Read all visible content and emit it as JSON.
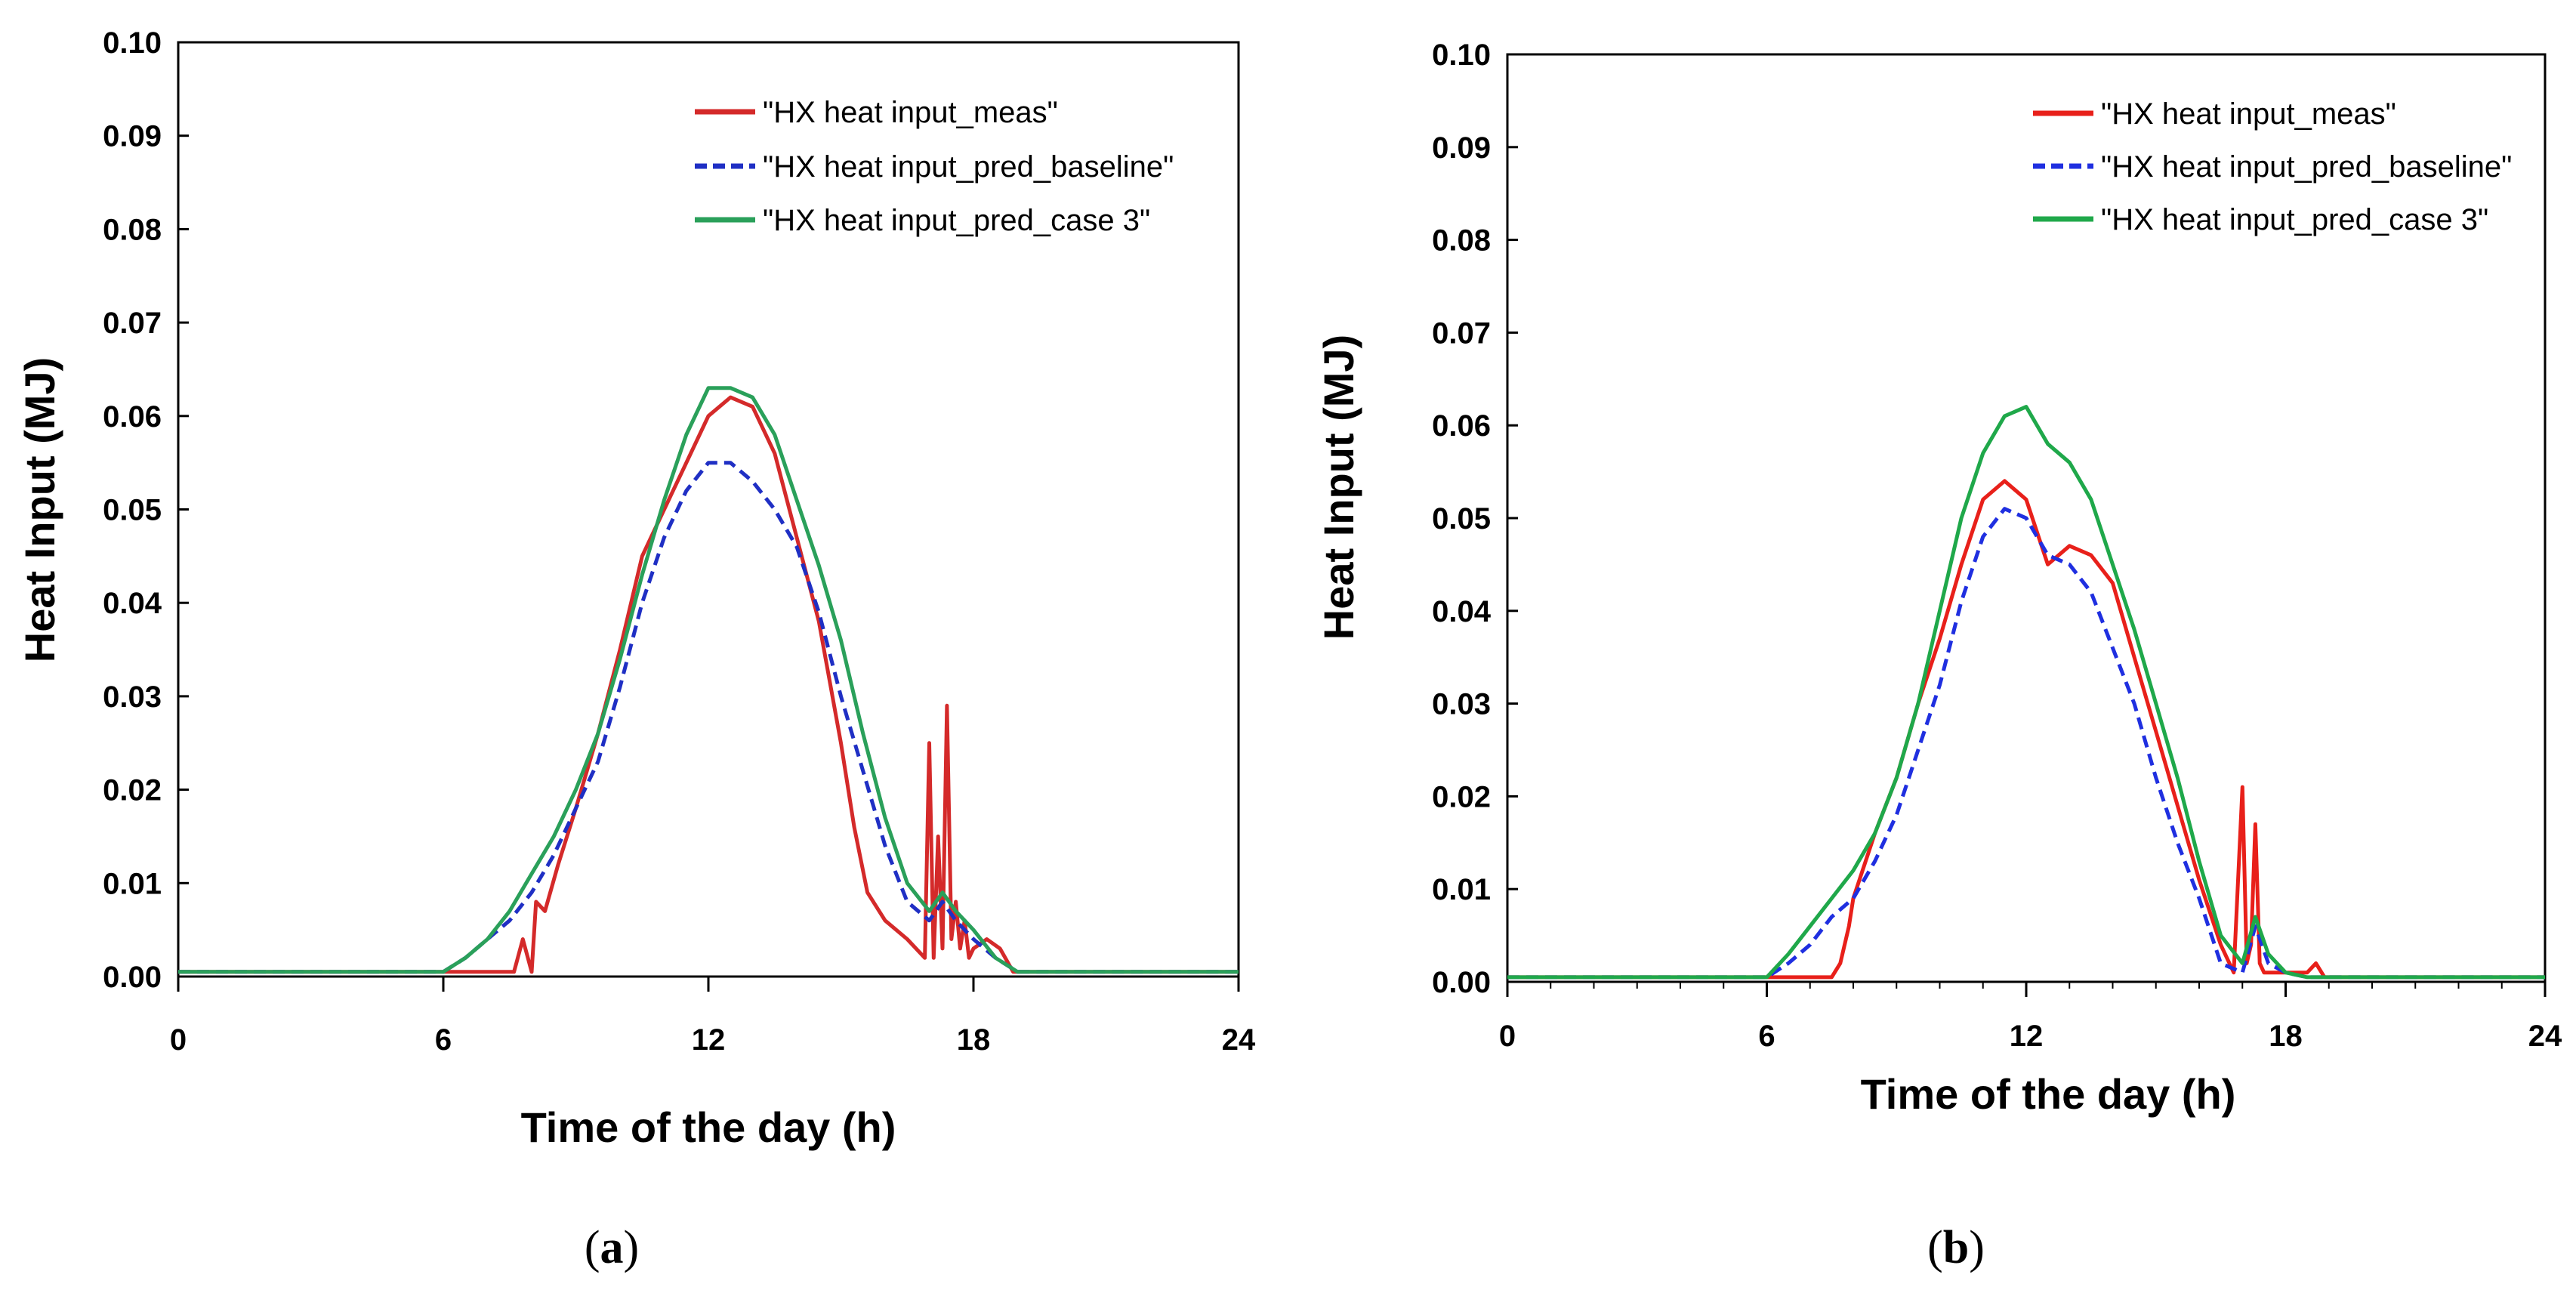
{
  "chart_data": [
    {
      "type": "line",
      "panel_label": "a",
      "title": "",
      "xlabel": "Time of the day (h)",
      "ylabel": "Heat Input (MJ)",
      "xlim": [
        0,
        24
      ],
      "ylim": [
        0,
        0.1
      ],
      "x_ticks": [
        0,
        6,
        12,
        18,
        24
      ],
      "x_tick_labels": [
        "0",
        "6",
        "12",
        "18",
        "24"
      ],
      "y_ticks": [
        0,
        0.01,
        0.02,
        0.03,
        0.04,
        0.05,
        0.06,
        0.07,
        0.08,
        0.09,
        0.1
      ],
      "y_tick_labels": [
        "0.00",
        "0.01",
        "0.02",
        "0.03",
        "0.04",
        "0.05",
        "0.06",
        "0.07",
        "0.08",
        "0.09",
        "0.10"
      ],
      "legend_position": "top-right",
      "grid": false,
      "series": [
        {
          "name": "\"HX heat input_meas\"",
          "color": "#d42a2a",
          "dash": "solid",
          "x": [
            0,
            7.6,
            7.8,
            8,
            8.1,
            8.3,
            8.6,
            9,
            9.5,
            10,
            10.5,
            11,
            11.5,
            12,
            12.5,
            13,
            13.5,
            14,
            14.5,
            15,
            15.3,
            15.6,
            16,
            16.5,
            16.9,
            17,
            17.1,
            17.2,
            17.3,
            17.4,
            17.5,
            17.6,
            17.7,
            17.8,
            17.9,
            18,
            18.3,
            18.6,
            18.9,
            19.2,
            24
          ],
          "y": [
            0.0005,
            0.0005,
            0.004,
            0.0005,
            0.008,
            0.007,
            0.012,
            0.018,
            0.026,
            0.035,
            0.045,
            0.05,
            0.055,
            0.06,
            0.062,
            0.061,
            0.056,
            0.047,
            0.038,
            0.025,
            0.016,
            0.009,
            0.006,
            0.004,
            0.002,
            0.025,
            0.002,
            0.015,
            0.003,
            0.029,
            0.004,
            0.008,
            0.003,
            0.006,
            0.002,
            0.003,
            0.004,
            0.003,
            0.0005,
            0.0005,
            0.0005
          ]
        },
        {
          "name": "\"HX heat input_pred_baseline\"",
          "color": "#1f2fc4",
          "dash": "dashed",
          "x": [
            0,
            6,
            6.5,
            7,
            7.5,
            8,
            8.5,
            9,
            9.5,
            10,
            10.5,
            11,
            11.5,
            12,
            12.5,
            13,
            13.5,
            14,
            14.5,
            15,
            15.5,
            16,
            16.5,
            17,
            17.3,
            17.6,
            18,
            18.5,
            19,
            24
          ],
          "y": [
            0.0005,
            0.0005,
            0.002,
            0.004,
            0.006,
            0.009,
            0.013,
            0.018,
            0.023,
            0.031,
            0.04,
            0.047,
            0.052,
            0.055,
            0.055,
            0.053,
            0.05,
            0.046,
            0.039,
            0.03,
            0.022,
            0.014,
            0.008,
            0.006,
            0.008,
            0.006,
            0.004,
            0.002,
            0.0005,
            0.0005
          ]
        },
        {
          "name": "\"HX heat input_pred_case 3\"",
          "color": "#2aa05a",
          "dash": "solid",
          "x": [
            0,
            6,
            6.5,
            7,
            7.5,
            8,
            8.5,
            9,
            9.5,
            10,
            10.5,
            11,
            11.5,
            12,
            12.5,
            13,
            13.5,
            14,
            14.5,
            15,
            15.5,
            16,
            16.5,
            17,
            17.3,
            17.6,
            18,
            18.5,
            19,
            24
          ],
          "y": [
            0.0005,
            0.0005,
            0.002,
            0.004,
            0.007,
            0.011,
            0.015,
            0.02,
            0.026,
            0.034,
            0.043,
            0.051,
            0.058,
            0.063,
            0.063,
            0.062,
            0.058,
            0.051,
            0.044,
            0.036,
            0.026,
            0.017,
            0.01,
            0.007,
            0.009,
            0.007,
            0.005,
            0.002,
            0.0005,
            0.0005
          ]
        }
      ]
    },
    {
      "type": "line",
      "panel_label": "b",
      "title": "",
      "xlabel": "Time of the day (h)",
      "ylabel": "Heat Input (MJ)",
      "xlim": [
        0,
        24
      ],
      "ylim": [
        0,
        0.1
      ],
      "x_ticks": [
        0,
        6,
        12,
        18,
        24
      ],
      "x_tick_labels": [
        "0",
        "6",
        "12",
        "18",
        "24"
      ],
      "y_ticks": [
        0,
        0.01,
        0.02,
        0.03,
        0.04,
        0.05,
        0.06,
        0.07,
        0.08,
        0.09,
        0.1
      ],
      "y_tick_labels": [
        "0.00",
        "0.01",
        "0.02",
        "0.03",
        "0.04",
        "0.05",
        "0.06",
        "0.07",
        "0.08",
        "0.09",
        "0.10"
      ],
      "legend_position": "top-right",
      "grid": false,
      "series": [
        {
          "name": "\"HX heat input_meas\"",
          "color": "#e8201a",
          "dash": "solid",
          "x": [
            0,
            7.5,
            7.7,
            7.9,
            8,
            8.5,
            9,
            9.5,
            10,
            10.5,
            11,
            11.5,
            12,
            12.5,
            13,
            13.5,
            14,
            14.5,
            15,
            15.5,
            16,
            16.5,
            16.8,
            17,
            17.1,
            17.2,
            17.3,
            17.4,
            17.5,
            17.7,
            18,
            18.5,
            18.7,
            18.9,
            24
          ],
          "y": [
            0.0005,
            0.0005,
            0.002,
            0.006,
            0.009,
            0.016,
            0.022,
            0.03,
            0.037,
            0.045,
            0.052,
            0.054,
            0.052,
            0.045,
            0.047,
            0.046,
            0.043,
            0.035,
            0.027,
            0.019,
            0.011,
            0.004,
            0.001,
            0.021,
            0.002,
            0.004,
            0.017,
            0.002,
            0.001,
            0.001,
            0.001,
            0.001,
            0.002,
            0.0005,
            0.0005
          ]
        },
        {
          "name": "\"HX heat input_pred_baseline\"",
          "color": "#1f2fe0",
          "dash": "dashed",
          "x": [
            0,
            6,
            6.5,
            7,
            7.5,
            8,
            8.5,
            9,
            9.5,
            10,
            10.5,
            11,
            11.5,
            12,
            12.5,
            13,
            13.5,
            14,
            14.5,
            15,
            15.5,
            16,
            16.5,
            17,
            17.3,
            17.6,
            18,
            18.5,
            19,
            24
          ],
          "y": [
            0.0005,
            0.0005,
            0.002,
            0.004,
            0.007,
            0.009,
            0.013,
            0.018,
            0.025,
            0.032,
            0.041,
            0.048,
            0.051,
            0.05,
            0.046,
            0.045,
            0.042,
            0.036,
            0.03,
            0.022,
            0.015,
            0.009,
            0.002,
            0.001,
            0.006,
            0.002,
            0.001,
            0.0005,
            0.0005,
            0.0005
          ]
        },
        {
          "name": "\"HX heat input_pred_case 3\"",
          "color": "#1fa84a",
          "dash": "solid",
          "x": [
            0,
            6,
            6.5,
            7,
            7.5,
            8,
            8.5,
            9,
            9.5,
            10,
            10.5,
            11,
            11.5,
            12,
            12.5,
            13,
            13.5,
            14,
            14.5,
            15,
            15.5,
            16,
            16.5,
            17,
            17.3,
            17.6,
            18,
            18.5,
            19,
            24
          ],
          "y": [
            0.0005,
            0.0005,
            0.003,
            0.006,
            0.009,
            0.012,
            0.016,
            0.022,
            0.03,
            0.04,
            0.05,
            0.057,
            0.061,
            0.062,
            0.058,
            0.056,
            0.052,
            0.045,
            0.038,
            0.03,
            0.022,
            0.013,
            0.005,
            0.002,
            0.007,
            0.003,
            0.001,
            0.0005,
            0.0005,
            0.0005
          ]
        }
      ]
    }
  ]
}
